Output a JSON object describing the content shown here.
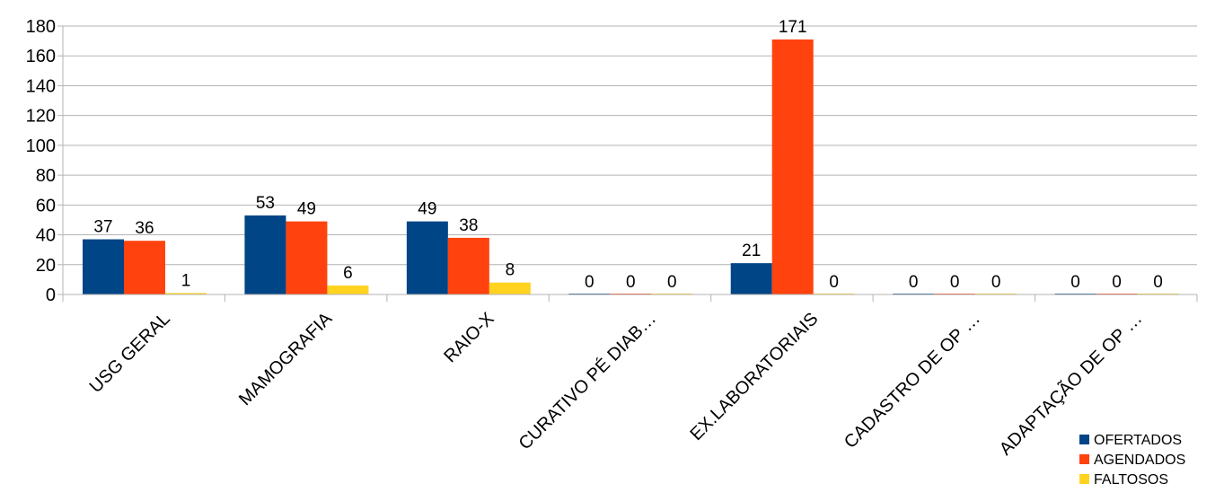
{
  "chart_data": {
    "type": "bar",
    "title": "",
    "xlabel": "",
    "ylabel": "",
    "ylim": [
      0,
      180
    ],
    "yticks": [
      0,
      20,
      40,
      60,
      80,
      100,
      120,
      140,
      160,
      180
    ],
    "grid": true,
    "legend_position": "bottom-right",
    "categories": [
      "USG GERAL",
      "MAMOGRAFIA",
      "RAIO-X",
      "CURATIVO PÉ DIAB…",
      "EX.LABORATORIAIS",
      "CADASTRO DE OP …",
      "ADAPTAÇÃO DE OP …"
    ],
    "series": [
      {
        "name": "OFERTADOS",
        "color": "#004586",
        "values": [
          37,
          53,
          49,
          0,
          21,
          0,
          0
        ]
      },
      {
        "name": "AGENDADOS",
        "color": "#ff420e",
        "values": [
          36,
          49,
          38,
          0,
          171,
          0,
          0
        ]
      },
      {
        "name": "FALTOSOS",
        "color": "#ffd320",
        "values": [
          1,
          6,
          8,
          0,
          0,
          0,
          0
        ]
      }
    ]
  }
}
